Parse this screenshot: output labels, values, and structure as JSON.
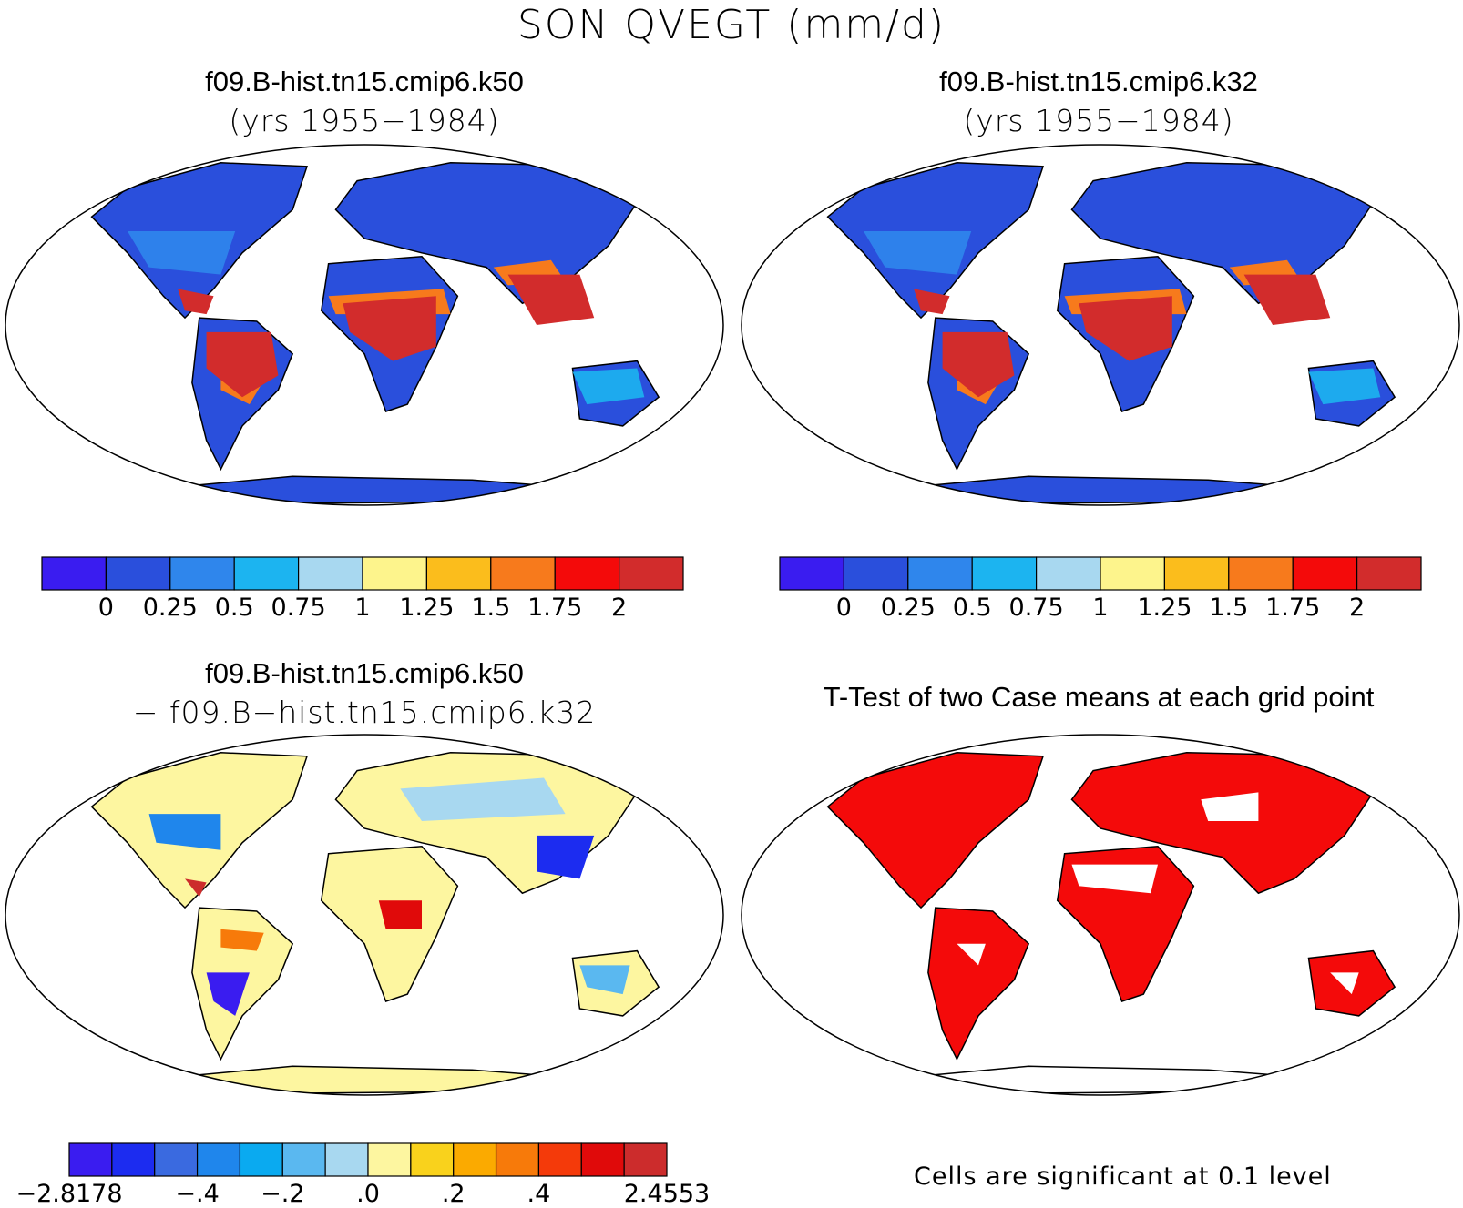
{
  "figure": {
    "title": "SON QVEGT (mm/d)"
  },
  "panels": [
    {
      "id": "k50",
      "title_line1": "f09.B-hist.tn15.cmip6.k50",
      "title_line2": "(yrs 1955−1984)"
    },
    {
      "id": "k32",
      "title_line1": "f09.B-hist.tn15.cmip6.k32",
      "title_line2": "(yrs 1955−1984)"
    },
    {
      "id": "diff",
      "title_line1": "f09.B-hist.tn15.cmip6.k50",
      "title_line2": "− f09.B−hist.tn15.cmip6.k32"
    },
    {
      "id": "ttest",
      "title_line1": "T-Test of two Case means at each grid point",
      "note": "Cells are significant at 0.1 level"
    }
  ],
  "colorbars": {
    "absolute": {
      "colors": [
        "#3a1cf0",
        "#2a4fdc",
        "#2f86ec",
        "#1cb4f0",
        "#a8d8f0",
        "#fdf48c",
        "#fbbd1c",
        "#f77a1c",
        "#f40a0a",
        "#d22c2c"
      ],
      "labels": [
        "0",
        "0.25",
        "0.5",
        "0.75",
        "1",
        "1.25",
        "1.5",
        "1.75",
        "2"
      ]
    },
    "difference": {
      "colors": [
        "#3a1cf0",
        "#1c2cf0",
        "#3a6ae0",
        "#1f86ec",
        "#0aaaf0",
        "#5ab8f0",
        "#a8d8f0",
        "#fdf6a0",
        "#f9d21c",
        "#fbaa00",
        "#f77a0a",
        "#f43a0a",
        "#e00a0a",
        "#cc2c2c"
      ],
      "labels": [
        "−2.8178",
        "−.4",
        "−.2",
        ".0",
        ".2",
        ".4",
        "2.4553"
      ]
    }
  },
  "map_colors": {
    "land_low": "#2a4fdc",
    "tropics_high": "#d22c2c",
    "diff_neutral": "#fdf6a0",
    "significant": "#f40a0a"
  }
}
